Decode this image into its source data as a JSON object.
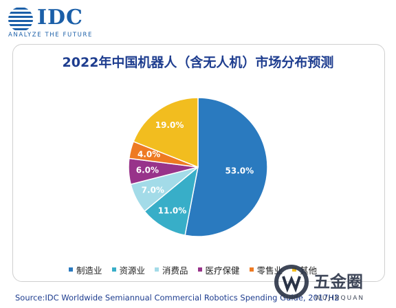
{
  "logo": {
    "brand": "IDC",
    "tagline": "ANALYZE THE FUTURE",
    "color": "#1b5fa8"
  },
  "chart_data": {
    "type": "pie",
    "title": "2022年中国机器人（含无人机）市场分布预测",
    "slices": [
      {
        "name": "制造业",
        "value": 53.0,
        "label": "53.0%",
        "color": "#2a7abf"
      },
      {
        "name": "资源业",
        "value": 11.0,
        "label": "11.0%",
        "color": "#38aec8"
      },
      {
        "name": "消费品",
        "value": 7.0,
        "label": "7.0%",
        "color": "#a3dbe8"
      },
      {
        "name": "医疗保健",
        "value": 6.0,
        "label": "6.0%",
        "color": "#98338a"
      },
      {
        "name": "零售业",
        "value": 4.0,
        "label": "4.0%",
        "color": "#ee7a22"
      },
      {
        "name": "其他",
        "value": 19.0,
        "label": "19.0%",
        "color": "#f2bd1f"
      }
    ],
    "legend_position": "bottom",
    "source": "Source:IDC Worldwide Semiannual Commercial Robotics Spending Guide, 2017H2"
  },
  "watermark": {
    "name": "五金圈",
    "subtitle": "WUJINQUAN"
  }
}
